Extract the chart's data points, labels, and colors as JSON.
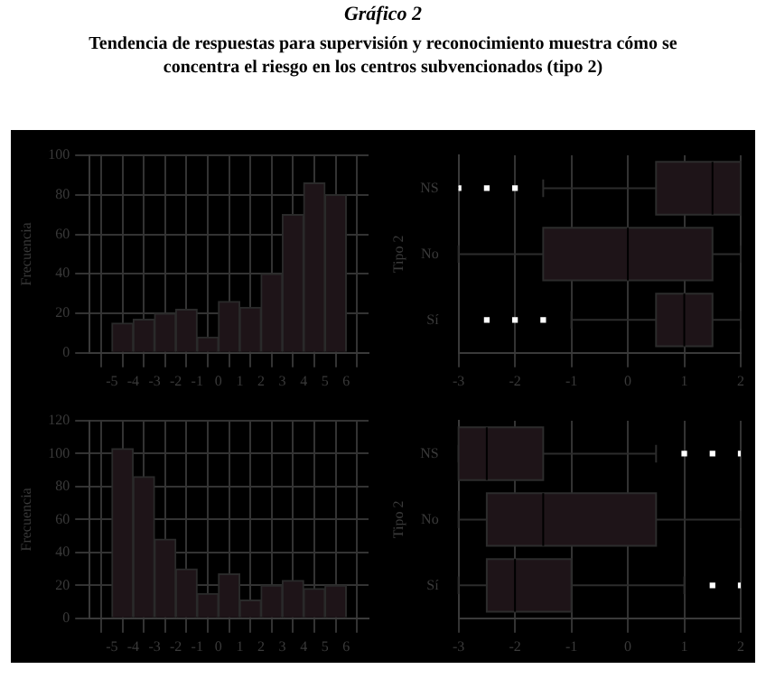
{
  "chart_data": [
    {
      "type": "histogram",
      "title": "Gráfico 2",
      "subtitle": "Tendencia de respuestas para supervisión y reconocimiento muestra cómo se concentra el riesgo en los centros subvencionados (tipo 2)",
      "ylabel": "Frecuencia",
      "bins": [
        -5,
        -4,
        -3,
        -2,
        -1,
        0,
        1,
        2,
        3,
        4,
        5,
        6
      ],
      "values": [
        15,
        17,
        20,
        22,
        8,
        26,
        23,
        40,
        70,
        86,
        80
      ],
      "color": "#1e1418",
      "xlim": [
        -5.5,
        6.5
      ],
      "xticks": [
        -5,
        -4,
        -3,
        -2,
        -1,
        0,
        1,
        2,
        3,
        4,
        5,
        6
      ],
      "ylim": [
        0,
        100
      ],
      "yticks": [
        0,
        20,
        40,
        60,
        80,
        100
      ],
      "grid": true
    },
    {
      "type": "box",
      "orientation": "horizontal",
      "ylabel": "Tipo 2",
      "categories": [
        "NS",
        "No",
        "Sí"
      ],
      "color": "#1e1418",
      "xlim": [
        -3,
        2
      ],
      "xticks": [
        -3,
        -2,
        -1,
        0,
        1,
        2
      ],
      "grid": "x",
      "boxes": [
        {
          "low": -1.5,
          "q1": 0.5,
          "median": 1.5,
          "q3": 2,
          "high": 2,
          "outliers": [
            -3,
            -2.5,
            -2
          ]
        },
        {
          "low": -3,
          "q1": -1.5,
          "median": 0,
          "q3": 1.5,
          "high": 2
        },
        {
          "low": -1,
          "q1": 0.5,
          "median": 1,
          "q3": 1.5,
          "high": 2,
          "outliers": [
            -2.5,
            -2,
            -1.5
          ]
        }
      ]
    },
    {
      "type": "histogram",
      "ylabel": "Frecuencia",
      "bins": [
        -5,
        -4,
        -3,
        -2,
        -1,
        0,
        1,
        2,
        3,
        4,
        5,
        6
      ],
      "values": [
        103,
        86,
        48,
        30,
        15,
        27,
        11,
        20,
        23,
        18,
        20
      ],
      "color": "#1e1418",
      "xlim": [
        -5.5,
        6.5
      ],
      "xticks": [
        -5,
        -4,
        -3,
        -2,
        -1,
        0,
        1,
        2,
        3,
        4,
        5,
        6
      ],
      "ylim": [
        0,
        120
      ],
      "yticks": [
        0,
        20,
        40,
        60,
        80,
        100,
        120
      ],
      "grid": true
    },
    {
      "type": "box",
      "orientation": "horizontal",
      "ylabel": "Tipo 2",
      "categories": [
        "NS",
        "No",
        "Sí"
      ],
      "color": "#1e1418",
      "xlim": [
        -3,
        2
      ],
      "xticks": [
        -3,
        -2,
        -1,
        0,
        1,
        2
      ],
      "grid": "x",
      "boxes": [
        {
          "low": -3,
          "q1": -3,
          "median": -2.5,
          "q3": -1.5,
          "high": 0.5,
          "outliers": [
            1,
            1.5,
            2
          ]
        },
        {
          "low": -3,
          "q1": -2.5,
          "median": -1.5,
          "q3": 0.5,
          "high": 2
        },
        {
          "low": -3,
          "q1": -2.5,
          "median": -2,
          "q3": -1,
          "high": 1,
          "outliers": [
            1.5,
            2
          ]
        }
      ]
    }
  ]
}
